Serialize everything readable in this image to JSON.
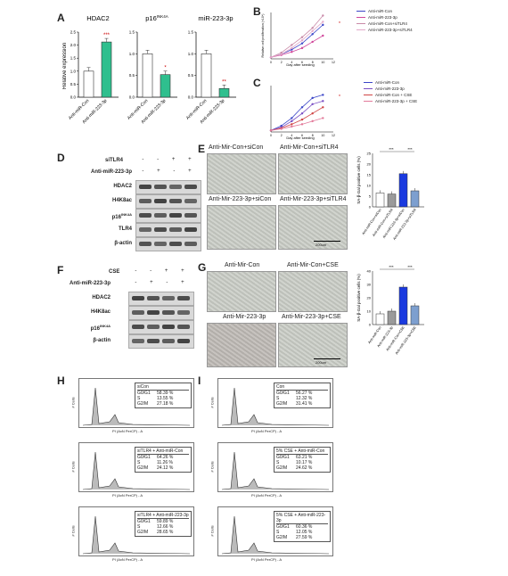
{
  "panel_labels": {
    "A": "A",
    "B": "B",
    "C": "C",
    "D": "D",
    "E": "E",
    "F": "F",
    "G": "G",
    "H": "H",
    "I": "I"
  },
  "panelA": {
    "ylabel": "Relative expression",
    "charts": [
      {
        "title": "HDAC2",
        "categories": [
          "Anti-miR-Con",
          "Anti-miR-223-3p"
        ],
        "values": [
          1.0,
          2.12
        ],
        "sig": "***"
      },
      {
        "title": "p16",
        "title_sup": "INK4A",
        "categories": [
          "Anti-miR-Con",
          "Anti-miR-223-3p"
        ],
        "values": [
          1.0,
          0.52
        ],
        "sig": "*"
      },
      {
        "title": "miR-223-3p",
        "categories": [
          "Anti-miR-Con",
          "Anti-miR-223-3p"
        ],
        "values": [
          1.0,
          0.2
        ],
        "sig": "**"
      }
    ]
  },
  "chart_data": [
    {
      "type": "bar",
      "title": "HDAC2",
      "categories": [
        "Anti-miR-Con",
        "Anti-miR-223-3p"
      ],
      "values": [
        1.0,
        2.12
      ],
      "ylim": [
        0,
        2.5
      ],
      "yticks": [
        "0.0",
        "0.5",
        "1.0",
        "1.5",
        "2.0",
        "2.5"
      ],
      "ylabel": "Relative expression"
    },
    {
      "type": "bar",
      "title": "p16INK4A",
      "categories": [
        "Anti-miR-Con",
        "Anti-miR-223-3p"
      ],
      "values": [
        1.0,
        0.52
      ],
      "ylim": [
        0,
        1.5
      ],
      "yticks": [
        "0.0",
        "0.5",
        "1.0",
        "1.5"
      ]
    },
    {
      "type": "bar",
      "title": "miR-223-3p",
      "categories": [
        "Anti-miR-Con",
        "Anti-miR-223-3p"
      ],
      "values": [
        1.0,
        0.2
      ],
      "ylim": [
        0,
        1.5
      ],
      "yticks": [
        "0.0",
        "0.5",
        "1.0",
        "1.5"
      ]
    },
    {
      "type": "line",
      "x": [
        0,
        2,
        4,
        6,
        8,
        10
      ],
      "xlim": [
        0,
        12
      ],
      "xticks": [
        0,
        2,
        4,
        6,
        8,
        10,
        12
      ],
      "xlabel": "Day after seeding",
      "ylabel": "Relative cell proliferation (×10⁴)",
      "series": [
        {
          "name": "Anti-miR-Con",
          "color": "#3b46c8",
          "values": [
            1,
            3,
            6,
            10,
            16,
            22
          ]
        },
        {
          "name": "Anti-miR-223-3p",
          "color": "#d0479a",
          "values": [
            1,
            2.5,
            4.5,
            7,
            11,
            15
          ]
        },
        {
          "name": "Anti-miR-Con+siTLR4",
          "color": "#c98aa8",
          "values": [
            1,
            4,
            9,
            14,
            20,
            28
          ]
        },
        {
          "name": "Anti-miR-223-3p+siTLR4",
          "color": "#e3a9c9",
          "values": [
            1,
            3,
            7,
            12,
            18,
            24
          ]
        }
      ]
    },
    {
      "type": "line",
      "x": [
        0,
        2,
        4,
        6,
        8,
        10
      ],
      "xlim": [
        0,
        12
      ],
      "xticks": [
        0,
        2,
        4,
        6,
        8,
        10,
        12
      ],
      "xlabel": "Day after seeding",
      "series": [
        {
          "name": "Anti-miR-Con",
          "color": "#3b46c8",
          "values": [
            1,
            4,
            9,
            16,
            22,
            24
          ]
        },
        {
          "name": "Anti-miR-223-3p",
          "color": "#7a4fc4",
          "values": [
            1,
            3,
            7,
            12,
            18,
            20
          ]
        },
        {
          "name": "Anti-miR-Con + CSE",
          "color": "#d04545",
          "values": [
            1,
            2.5,
            5,
            8,
            12,
            16
          ]
        },
        {
          "name": "Anti-miR-223-3p + CSE",
          "color": "#e27a9a",
          "values": [
            1,
            2,
            3.5,
            5,
            7,
            9
          ]
        }
      ]
    },
    {
      "type": "bar",
      "categories": [
        "Anti-miR-Con+siCon",
        "Anti-miR-Con+siTLR4",
        "Anti-miR-223-3p+siCon",
        "Anti-miR-223-3p+siTLR4"
      ],
      "values": [
        6.5,
        6.0,
        15.5,
        7.5
      ],
      "ylim": [
        0,
        25
      ],
      "yticks": [
        "0",
        "5",
        "10",
        "15",
        "20",
        "25"
      ],
      "ylabel": "SA-β-Gal positive cells (%)",
      "colors": [
        "#ffffff",
        "#9a9a9a",
        "#1a3adf",
        "#7d9fcf"
      ],
      "sig": [
        "***",
        "***"
      ]
    },
    {
      "type": "bar",
      "categories": [
        "Anti-miR-Con",
        "Anti-miR-223-3p",
        "Anti-miR-Con+CSE",
        "Anti-miR-223-3p+CSE"
      ],
      "values": [
        8,
        10,
        28,
        14
      ],
      "ylim": [
        0,
        40
      ],
      "yticks": [
        "0",
        "10",
        "20",
        "30",
        "40"
      ],
      "ylabel": "SA-β-Gal positive cells (%)",
      "colors": [
        "#ffffff",
        "#9a9a9a",
        "#1a3adf",
        "#7d9fcf"
      ],
      "sig": [
        "***",
        "***"
      ]
    }
  ],
  "panelB": {
    "legend": [
      "Anti-miR-Con",
      "Anti-miR-223-3p",
      "Anti-miR-Con+siTLR4",
      "Anti-miR-223-3p+siTLR4"
    ],
    "xlabel": "Day after seeding"
  },
  "panelC": {
    "legend": [
      "Anti-miR-Con",
      "Anti-miR-223-3p",
      "Anti-miR-Con + CSE",
      "Anti-miR-223-3p + CSE"
    ],
    "xlabel": "Day after seeding"
  },
  "panelD": {
    "row1_label": "siTLR4",
    "row1_marks": [
      "-",
      "-",
      "+",
      "+"
    ],
    "row2_label": "Anti-miR-223-3p",
    "row2_marks": [
      "-",
      "+",
      "-",
      "+"
    ],
    "bands": [
      "HDAC2",
      "H4K8ac",
      "p16",
      "TLR4",
      "β-actin"
    ],
    "p16_sup": "INK4A"
  },
  "panelE": {
    "labels": [
      "Anti-Mir-Con+siCon",
      "Anti-Mir-Con+siTLR4",
      "Anti-Mir-223-3p+siCon",
      "Anti-Mir-223-3p+siTLR4"
    ],
    "scale": "200um"
  },
  "panelF": {
    "row1_label": "CSE",
    "row1_marks": [
      "-",
      "-",
      "+",
      "+"
    ],
    "row2_label": "Anti-miR-223-3p",
    "row2_marks": [
      "-",
      "+",
      "-",
      "+"
    ],
    "bands": [
      "HDAC2",
      "H4K8ac",
      "p16",
      "β-actin"
    ],
    "p16_sup": "INK4A"
  },
  "panelG": {
    "labels": [
      "Anti-Mir-Con",
      "Anti-Mir-Con+CSE",
      "Anti-Mir-223-3p",
      "Anti-Mir-223-3p+CSE"
    ],
    "scale": "200um"
  },
  "panelH": {
    "xlabel": "PI (AxN PerCP) - A",
    "ylabel": "# Cells",
    "plots": [
      {
        "title": "siCon",
        "rows": [
          [
            "G0/G1",
            "58.39 %"
          ],
          [
            "S",
            "13.55 %"
          ],
          [
            "G2/M",
            "27.18 %"
          ]
        ]
      },
      {
        "title": "siTLR4 + Anti-miR-Con",
        "rows": [
          [
            "G0/G1",
            "64.26 %"
          ],
          [
            "S",
            "11.26 %"
          ],
          [
            "G2/M",
            "24.12 %"
          ]
        ]
      },
      {
        "title": "siTLR4 + Anti-miR-223-3p",
        "rows": [
          [
            "G0/G1",
            "59.89 %"
          ],
          [
            "S",
            "12.66 %"
          ],
          [
            "G2/M",
            "28.65 %"
          ]
        ]
      }
    ]
  },
  "panelI": {
    "xlabel": "PI (AxN PerCP) - A",
    "ylabel": "# Cells",
    "plots": [
      {
        "title": "Con",
        "rows": [
          [
            "G0/G1",
            "56.27 %"
          ],
          [
            "S",
            "12.32 %"
          ],
          [
            "G2/M",
            "31.41 %"
          ]
        ]
      },
      {
        "title": "5% CSE + Anti-miR-Con",
        "rows": [
          [
            "G0/G1",
            "63.21 %"
          ],
          [
            "S",
            "10.17 %"
          ],
          [
            "G2/M",
            "24.62 %"
          ]
        ]
      },
      {
        "title": "5% CSE + Anti-miR-223-3p",
        "rows": [
          [
            "G0/G1",
            "60.36 %"
          ],
          [
            "S",
            "12.05 %"
          ],
          [
            "G2/M",
            "27.59 %"
          ]
        ]
      }
    ]
  }
}
